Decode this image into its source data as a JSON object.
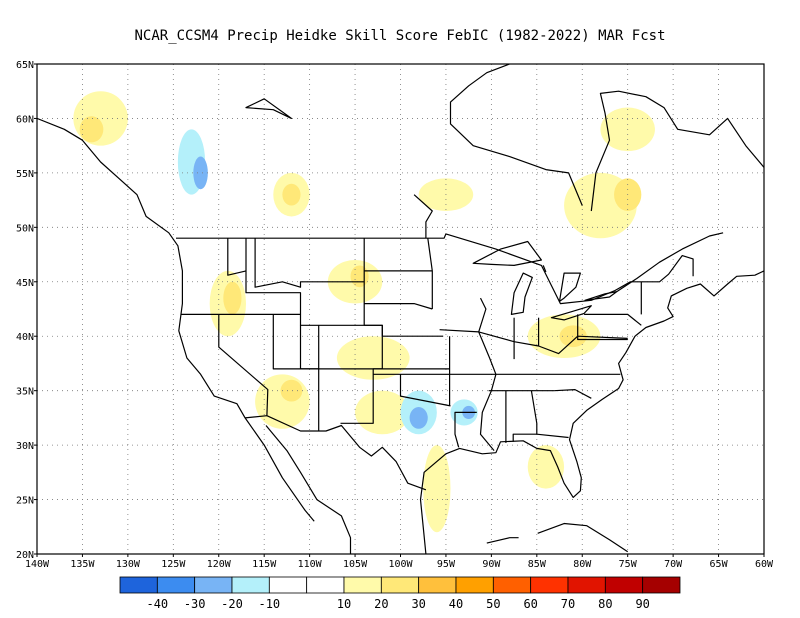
{
  "title": "NCAR_CCSM4 Precip Heidke Skill Score FebIC (1982-2022) MAR Fcst",
  "map": {
    "lon_range": [
      -140,
      -60
    ],
    "lat_range": [
      20,
      65
    ],
    "lat_labels": [
      "20N",
      "25N",
      "30N",
      "35N",
      "40N",
      "45N",
      "50N",
      "55N",
      "60N",
      "65N"
    ],
    "lon_labels": [
      "140W",
      "135W",
      "130W",
      "125W",
      "120W",
      "115W",
      "110W",
      "105W",
      "100W",
      "95W",
      "90W",
      "85W",
      "80W",
      "75W",
      "70W",
      "65W",
      "60W"
    ],
    "grid": "dotted"
  },
  "colorbar": {
    "colors": [
      "#1e64dc",
      "#3c8cf0",
      "#78b4f5",
      "#b4f0fa",
      "#ffffff",
      "#ffffff",
      "#fffaaa",
      "#ffe878",
      "#ffc03c",
      "#ffa000",
      "#ff6000",
      "#ff3200",
      "#e11400",
      "#c00000",
      "#a50000"
    ],
    "labels": [
      "-40",
      "-30",
      "-20",
      "-10",
      "10",
      "20",
      "30",
      "40",
      "50",
      "60",
      "70",
      "80",
      "90"
    ]
  },
  "skill_patches": [
    {
      "lon": -133,
      "lat": 60,
      "rx": 3,
      "ry": 2.5,
      "color": "#fffaaa"
    },
    {
      "lon": -134,
      "lat": 59,
      "rx": 1.3,
      "ry": 1.2,
      "color": "#ffe878"
    },
    {
      "lon": -123,
      "lat": 56,
      "rx": 1.5,
      "ry": 3,
      "color": "#b4f0fa"
    },
    {
      "lon": -122,
      "lat": 55,
      "rx": 0.8,
      "ry": 1.5,
      "color": "#78b4f5"
    },
    {
      "lon": -112,
      "lat": 53,
      "rx": 2,
      "ry": 2,
      "color": "#fffaaa"
    },
    {
      "lon": -112,
      "lat": 53,
      "rx": 1,
      "ry": 1,
      "color": "#ffe878"
    },
    {
      "lon": -95,
      "lat": 53,
      "rx": 3,
      "ry": 1.5,
      "color": "#fffaaa"
    },
    {
      "lon": -78,
      "lat": 52,
      "rx": 4,
      "ry": 3,
      "color": "#fffaaa"
    },
    {
      "lon": -75,
      "lat": 53,
      "rx": 1.5,
      "ry": 1.5,
      "color": "#ffe878"
    },
    {
      "lon": -75,
      "lat": 59,
      "rx": 3,
      "ry": 2,
      "color": "#fffaaa"
    },
    {
      "lon": -119,
      "lat": 43,
      "rx": 2,
      "ry": 3,
      "color": "#fffaaa"
    },
    {
      "lon": -118.5,
      "lat": 43.5,
      "rx": 1,
      "ry": 1.5,
      "color": "#ffe878"
    },
    {
      "lon": -105,
      "lat": 45,
      "rx": 3,
      "ry": 2,
      "color": "#fffaaa"
    },
    {
      "lon": -104.5,
      "lat": 45.5,
      "rx": 1,
      "ry": 1,
      "color": "#ffe878"
    },
    {
      "lon": -113,
      "lat": 34,
      "rx": 3,
      "ry": 2.5,
      "color": "#fffaaa"
    },
    {
      "lon": -112,
      "lat": 35,
      "rx": 1.2,
      "ry": 1,
      "color": "#ffe878"
    },
    {
      "lon": -103,
      "lat": 38,
      "rx": 4,
      "ry": 2,
      "color": "#fffaaa"
    },
    {
      "lon": -102,
      "lat": 33,
      "rx": 3,
      "ry": 2,
      "color": "#fffaaa"
    },
    {
      "lon": -98,
      "lat": 33,
      "rx": 2,
      "ry": 2,
      "color": "#b4f0fa"
    },
    {
      "lon": -98,
      "lat": 32.5,
      "rx": 1,
      "ry": 1,
      "color": "#78b4f5"
    },
    {
      "lon": -93,
      "lat": 33,
      "rx": 1.5,
      "ry": 1.2,
      "color": "#b4f0fa"
    },
    {
      "lon": -92.5,
      "lat": 33,
      "rx": 0.7,
      "ry": 0.6,
      "color": "#78b4f5"
    },
    {
      "lon": -82,
      "lat": 40,
      "rx": 4,
      "ry": 2,
      "color": "#fffaaa"
    },
    {
      "lon": -81,
      "lat": 40,
      "rx": 1.5,
      "ry": 1,
      "color": "#ffe878"
    },
    {
      "lon": -96,
      "lat": 26,
      "rx": 1.5,
      "ry": 4,
      "color": "#fffaaa"
    },
    {
      "lon": -84,
      "lat": 28,
      "rx": 2,
      "ry": 2,
      "color": "#fffaaa"
    }
  ]
}
